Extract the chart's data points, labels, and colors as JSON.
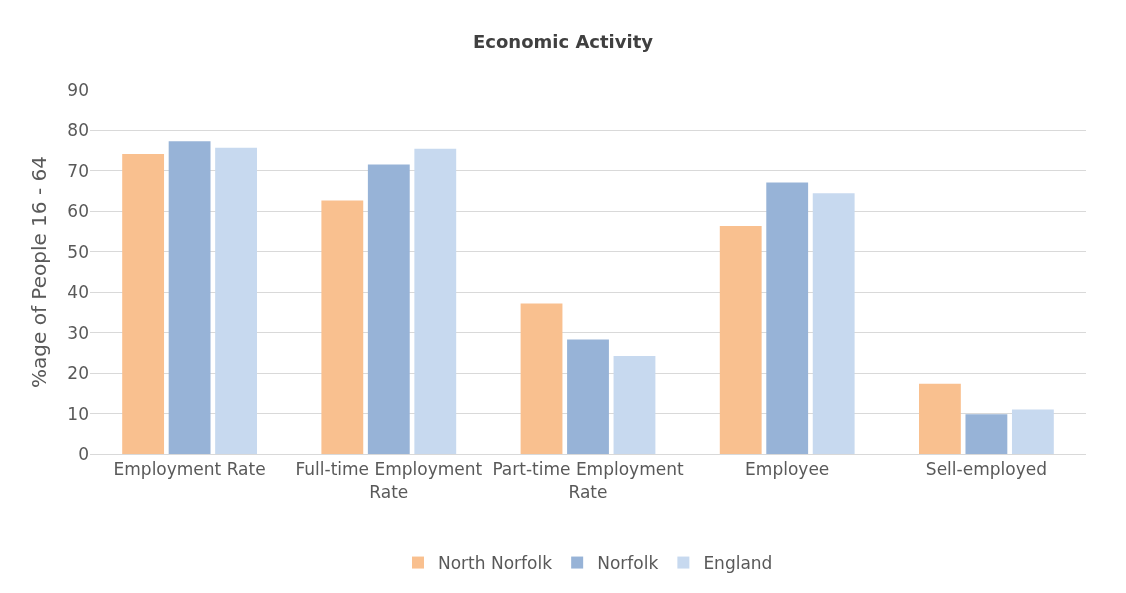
{
  "chart_data": {
    "type": "bar",
    "title": "Economic Activity",
    "ylabel": "%age of People 16 - 64",
    "categories": [
      "Employment Rate",
      "Full-time Employment Rate",
      "Part-time Employment Rate",
      "Employee",
      "Sell-employed"
    ],
    "series": [
      {
        "name": "North Norfolk",
        "color": "#f9c08f",
        "values": [
          74.2,
          62.7,
          37.2,
          56.4,
          17.4
        ]
      },
      {
        "name": "Norfolk",
        "color": "#97b3d7",
        "values": [
          77.3,
          71.6,
          28.3,
          67.1,
          9.8
        ]
      },
      {
        "name": "England",
        "color": "#c7d9ef",
        "values": [
          75.7,
          75.5,
          24.2,
          64.5,
          11.0
        ]
      }
    ],
    "ylim": [
      0,
      90
    ],
    "yticks": [
      0,
      10,
      20,
      30,
      40,
      50,
      60,
      70,
      80,
      90
    ],
    "grid": "y",
    "legend": "bottom"
  }
}
